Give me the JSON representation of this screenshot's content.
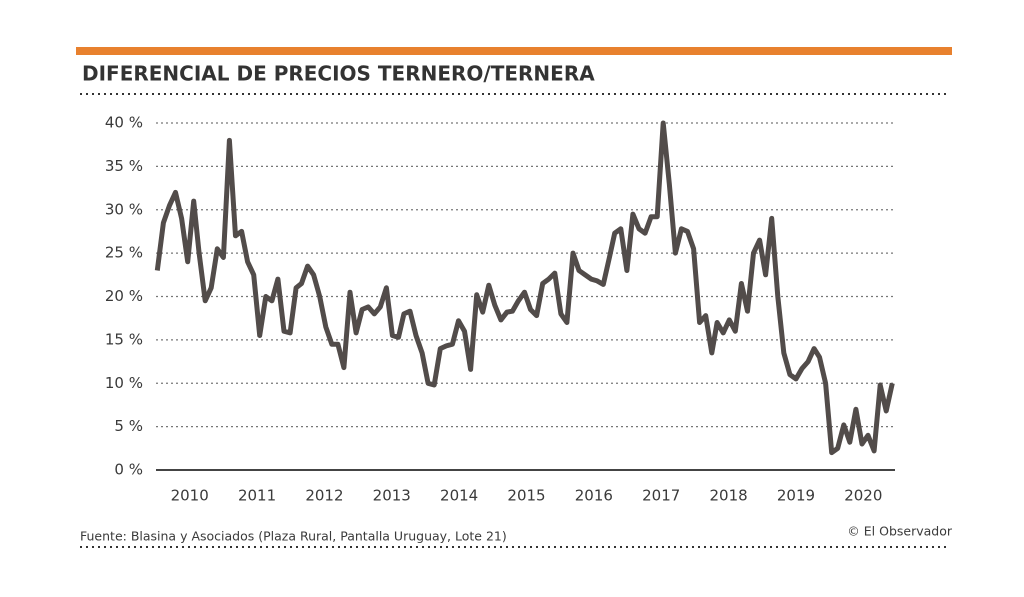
{
  "chart_data": {
    "type": "line",
    "title": "DIFERENCIAL DE PRECIOS TERNERO/TERNERA",
    "source": "Fuente: Blasina y Asociados (Plaza Rural, Pantalla Uruguay, Lote 21)",
    "credit": "© El Observador",
    "xlim": [
      2009.5,
      2020.5
    ],
    "xticks": [
      2010,
      2011,
      2012,
      2013,
      2014,
      2015,
      2016,
      2017,
      2018,
      2019,
      2020
    ],
    "ylim": [
      0,
      40
    ],
    "yticks": [
      {
        "value": 0,
        "label": "0 %"
      },
      {
        "value": 5,
        "label": "5 %"
      },
      {
        "value": 10,
        "label": "10 %"
      },
      {
        "value": 15,
        "label": "15 %"
      },
      {
        "value": 20,
        "label": "20 %"
      },
      {
        "value": 25,
        "label": "25 %"
      },
      {
        "value": 30,
        "label": "30 %"
      },
      {
        "value": 35,
        "label": "35 %"
      },
      {
        "value": 40,
        "label": "40 %"
      }
    ],
    "grid": true,
    "color": "#524c4a",
    "x": [
      2009.52,
      2009.61,
      2009.7,
      2009.79,
      2009.88,
      2009.97,
      2010.06,
      2010.14,
      2010.23,
      2010.32,
      2010.41,
      2010.5,
      2010.59,
      2010.68,
      2010.77,
      2010.86,
      2010.95,
      2011.04,
      2011.13,
      2011.22,
      2011.31,
      2011.4,
      2011.49,
      2011.58,
      2011.66,
      2011.75,
      2011.84,
      2011.93,
      2012.02,
      2012.11,
      2012.2,
      2012.29,
      2012.38,
      2012.47,
      2012.56,
      2012.65,
      2012.74,
      2012.83,
      2012.92,
      2013.01,
      2013.1,
      2013.18,
      2013.27,
      2013.36,
      2013.45,
      2013.54,
      2013.63,
      2013.72,
      2013.81,
      2013.9,
      2013.99,
      2014.08,
      2014.17,
      2014.26,
      2014.35,
      2014.44,
      2014.53,
      2014.62,
      2014.71,
      2014.79,
      2014.88,
      2014.97,
      2015.06,
      2015.15,
      2015.24,
      2015.33,
      2015.42,
      2015.51,
      2015.6,
      2015.69,
      2015.78,
      2015.87,
      2015.96,
      2016.05,
      2016.14,
      2016.23,
      2016.31,
      2016.4,
      2016.49,
      2016.58,
      2016.67,
      2016.76,
      2016.85,
      2016.94,
      2017.03,
      2017.12,
      2017.21,
      2017.3,
      2017.39,
      2017.48,
      2017.57,
      2017.66,
      2017.75,
      2017.83,
      2017.92,
      2018.01,
      2018.1,
      2018.19,
      2018.28,
      2018.37,
      2018.46,
      2018.55,
      2018.64,
      2018.73,
      2018.82,
      2018.91,
      2019.0,
      2019.09,
      2019.18,
      2019.27,
      2019.35,
      2019.44,
      2019.53,
      2019.62,
      2019.71,
      2019.8,
      2019.89,
      2019.98,
      2020.07,
      2020.16,
      2020.25,
      2020.34,
      2020.43
    ],
    "values": [
      23,
      28.5,
      30.5,
      32,
      29,
      24,
      31,
      25,
      19.5,
      21,
      25.5,
      24.5,
      38,
      27,
      27.5,
      24,
      22.5,
      15.5,
      20,
      19.5,
      22,
      16,
      15.8,
      21,
      21.5,
      23.5,
      22.5,
      20,
      16.5,
      14.5,
      14.5,
      11.8,
      20.5,
      15.8,
      18.5,
      18.8,
      18,
      18.8,
      21,
      15.5,
      15.3,
      18,
      18.3,
      15.5,
      13.5,
      10,
      9.8,
      14,
      14.3,
      14.5,
      17.2,
      16,
      11.6,
      20.2,
      18.2,
      21.3,
      19,
      17.3,
      18.2,
      18.3,
      19.5,
      20.5,
      18.5,
      17.8,
      21.5,
      22,
      22.7,
      18,
      17,
      25,
      23,
      22.5,
      22,
      21.8,
      21.4,
      24.5,
      27.3,
      27.8,
      23,
      29.5,
      27.8,
      27.3,
      29.2,
      29.2,
      40,
      33,
      25,
      27.8,
      27.5,
      25.5,
      17,
      17.8,
      13.5,
      17,
      15.8,
      17.3,
      16,
      21.5,
      18.3,
      25,
      26.5,
      22.5,
      29,
      20,
      13.5,
      11,
      10.5,
      11.7,
      12.5,
      14,
      13,
      10,
      2,
      2.5,
      5.2,
      3.2,
      7,
      3,
      4,
      2.2,
      9.8,
      6.8,
      10
    ]
  }
}
